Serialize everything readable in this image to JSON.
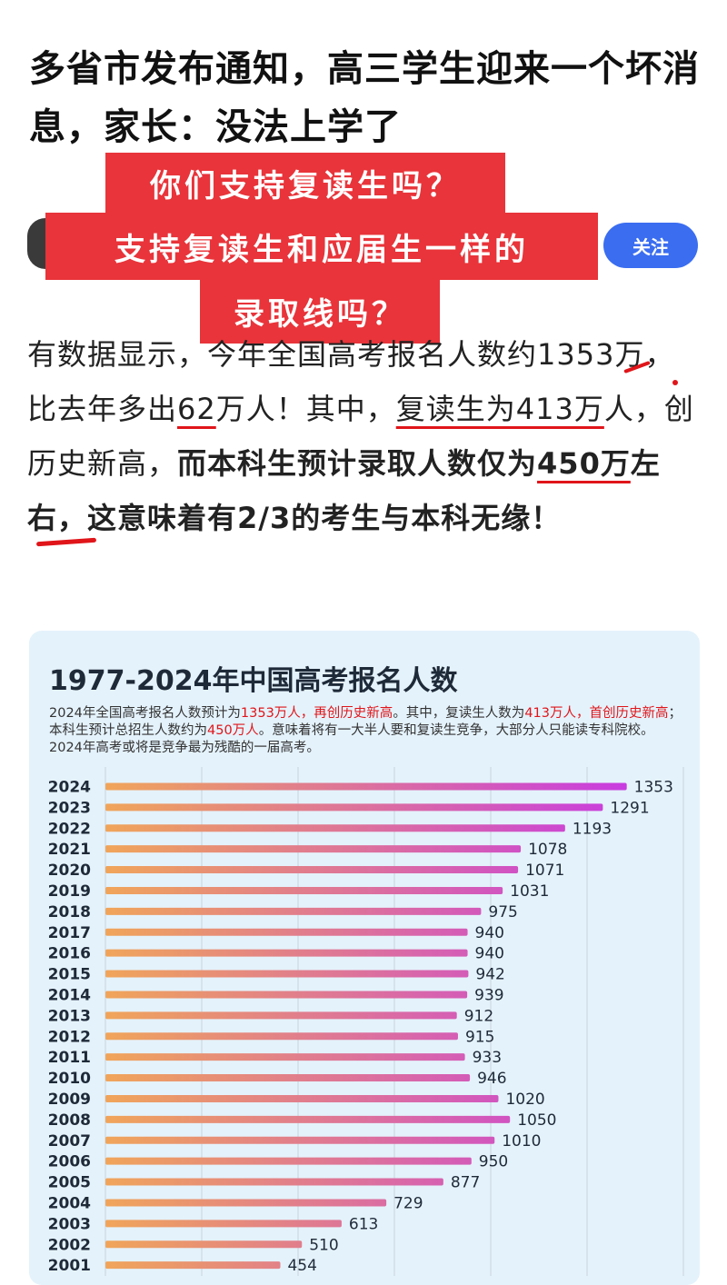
{
  "article": {
    "headline": "多省市发布通知，高三学生迎来一个坏消息，家长：没法上学了",
    "follow_label": "关注",
    "paragraph": {
      "p1": "有数据显示，今年全国高考报名人数约",
      "n1": "1353",
      "p2": "万，比去年多出",
      "n2": "62",
      "p3": "万人！其中，",
      "n3": "复读生为413万",
      "p4": "人，创历史新高，",
      "p5": "而本科生预计录取人数仅为",
      "n4": "450万",
      "p6": "左右，这意味着有2/3的考生与本科无缘！"
    }
  },
  "overlay": {
    "line1": "你们支持复读生吗？",
    "line2": "支持复读生和应届生一样的",
    "line3": "录取线吗？"
  },
  "card": {
    "title": "1977-2024年中国高考报名人数",
    "desc": {
      "a": "2024年全国高考报名人数预计为",
      "b": "1353万人，再创历史新高",
      "c": "。其中，复读生人数为",
      "d": "413万人，首创历史新高",
      "e": "；本科生预计总招生人数约为",
      "f": "450万人",
      "g": "。意味着将有一大半人要和复读生竞争，大部分人只能读专科院校。2024年高考或将是竞争最为残酷的一届高考。"
    }
  },
  "chart_data": {
    "type": "bar",
    "orientation": "horizontal",
    "title": "1977-2024年中国高考报名人数",
    "categories": [
      "2024",
      "2023",
      "2022",
      "2021",
      "2020",
      "2019",
      "2018",
      "2017",
      "2016",
      "2015",
      "2014",
      "2013",
      "2012",
      "2011",
      "2010",
      "2009",
      "2008",
      "2007",
      "2006",
      "2005",
      "2004",
      "2003",
      "2002",
      "2001"
    ],
    "values": [
      1353,
      1291,
      1193,
      1078,
      1071,
      1031,
      975,
      940,
      940,
      942,
      939,
      912,
      915,
      933,
      946,
      1020,
      1050,
      1010,
      950,
      877,
      729,
      613,
      510,
      454
    ],
    "xlim": [
      0,
      1500
    ],
    "grid": true,
    "colors": {
      "start": "#f0a55a",
      "end": "#c83ce0",
      "grid": "#c9d3dc"
    }
  }
}
